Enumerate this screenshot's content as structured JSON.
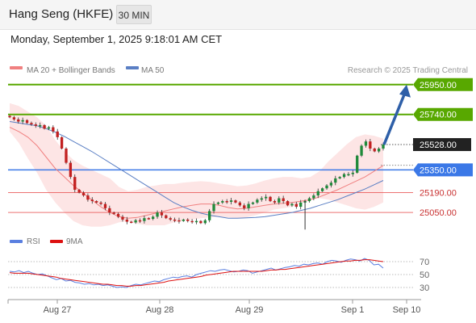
{
  "header": {
    "title": "Hang Seng (HKFE)",
    "interval": "30 MIN"
  },
  "datetime": "Monday, September 1, 2025 9:18:01 AM CET",
  "credit": "Research © 2025 Trading Central",
  "colors": {
    "resistance": "#58a800",
    "current": "#222222",
    "pivot": "#3b78e7",
    "support": "#e85050",
    "ma20": "#f08080",
    "ma50": "#5a7fc4",
    "bands": "#fde0e0",
    "candle_up": "#1f8a3a",
    "candle_down": "#c22020",
    "arrow": "#2e5fa8",
    "rsi": "#5a7fe0",
    "ma9": "#dd1111"
  },
  "chart_data": [
    {
      "type": "candlestick",
      "legend": [
        "MA 20 + Bollinger Bands",
        "MA 50"
      ],
      "x_ticks": [
        "Aug 27",
        "Aug 28",
        "Aug 29",
        "Sep 1",
        "Sep 10"
      ],
      "ylim": [
        24920,
        26000
      ],
      "levels": [
        {
          "label": "25950.00",
          "value": 25950,
          "kind": "resistance"
        },
        {
          "label": "25740.00",
          "value": 25740,
          "kind": "resistance"
        },
        {
          "label": "25528.00",
          "value": 25528,
          "kind": "current"
        },
        {
          "label": "25350.00",
          "value": 25350,
          "kind": "pivot"
        },
        {
          "label": "25190.00",
          "value": 25190,
          "kind": "support"
        },
        {
          "label": "25050.00",
          "value": 25050,
          "kind": "support"
        }
      ],
      "target_arrow": {
        "from": 25528,
        "to": 25950
      },
      "close": [
        25720,
        25705,
        25690,
        25700,
        25680,
        25670,
        25660,
        25665,
        25640,
        25650,
        25620,
        25580,
        25500,
        25400,
        25300,
        25210,
        25190,
        25170,
        25140,
        25130,
        25120,
        25110,
        25080,
        25050,
        25040,
        25020,
        25000,
        24985,
        24980,
        24995,
        24990,
        25010,
        25005,
        25020,
        25050,
        25030,
        25010,
        25000,
        24995,
        24990,
        25000,
        24990,
        24985,
        24990,
        24975,
        24995,
        25060,
        25110,
        25120,
        25130,
        25125,
        25135,
        25120,
        25100,
        25080,
        25110,
        25120,
        25140,
        25150,
        25160,
        25130,
        25120,
        25150,
        25130,
        25100,
        25110,
        25090,
        25120,
        25130,
        25150,
        25170,
        25200,
        25220,
        25240,
        25260,
        25290,
        25300,
        25320,
        25320,
        25330,
        25450,
        25520,
        25550,
        25500,
        25480,
        25500,
        25528
      ],
      "ma20": [
        25650,
        25620,
        25580,
        25520,
        25440,
        25360,
        25300,
        25240,
        25190,
        25140,
        25090,
        25050,
        25020,
        25010,
        25015,
        25030,
        25045,
        25060,
        25075,
        25090,
        25100,
        25110,
        25110,
        25100,
        25085,
        25075,
        25080,
        25090,
        25100,
        25110,
        25115,
        25120,
        25130,
        25140,
        25160,
        25185,
        25210,
        25240,
        25270,
        25300,
        25340,
        25380
      ],
      "ma50": [
        25690,
        25680,
        25670,
        25660,
        25640,
        25615,
        25585,
        25550,
        25515,
        25480,
        25440,
        25400,
        25360,
        25320,
        25280,
        25240,
        25200,
        25160,
        25120,
        25090,
        25065,
        25045,
        25030,
        25020,
        25010,
        25010,
        25012,
        25015,
        25020,
        25030,
        25040,
        25050,
        25065,
        25080,
        25100,
        25120,
        25140,
        25165,
        25190,
        25215,
        25245,
        25275
      ],
      "bb_upper": [
        25820,
        25800,
        25760,
        25720,
        25660,
        25560,
        25480,
        25420,
        25380,
        25350,
        25320,
        25290,
        25230,
        25200,
        25210,
        25230,
        25240,
        25250,
        25250,
        25260,
        25265,
        25270,
        25265,
        25255,
        25245,
        25235,
        25240,
        25255,
        25275,
        25290,
        25300,
        25300,
        25290,
        25300,
        25340,
        25410,
        25470,
        25530,
        25580,
        25600,
        25590,
        25570
      ],
      "bb_lower": [
        25620,
        25540,
        25430,
        25330,
        25210,
        25120,
        25050,
        24990,
        24960,
        24950,
        24950,
        24960,
        24980,
        24990,
        24970,
        24960,
        24960,
        24960,
        24980,
        24990,
        25000,
        25010,
        25015,
        25020,
        25015,
        25010,
        25015,
        25030,
        25050,
        25070,
        25080,
        25090,
        25110,
        25140,
        25150,
        25140,
        25120,
        25100,
        25080,
        25070,
        25090,
        25120
      ]
    },
    {
      "type": "line",
      "legend": [
        "RSI",
        "9MA"
      ],
      "y_ticks": [
        "70",
        "50",
        "30"
      ],
      "ylim": [
        15,
        85
      ],
      "rsi": [
        55,
        54,
        56,
        53,
        55,
        52,
        50,
        51,
        48,
        45,
        42,
        44,
        40,
        41,
        38,
        37,
        35,
        36,
        34,
        35,
        33,
        34,
        32,
        30,
        31,
        30,
        33,
        35,
        34,
        36,
        38,
        40,
        39,
        42,
        44,
        46,
        45,
        47,
        48,
        46,
        50,
        52,
        54,
        56,
        55,
        57,
        58,
        56,
        54,
        55,
        57,
        56,
        52,
        54,
        56,
        58,
        60,
        57,
        59,
        61,
        62,
        64,
        63,
        66,
        65,
        67,
        68,
        66,
        70,
        72,
        71,
        69,
        72,
        74,
        73,
        71,
        75,
        72,
        65,
        66,
        60
      ],
      "ma9": [
        53,
        52,
        52,
        52,
        52,
        51,
        50,
        49,
        48,
        47,
        46,
        44,
        43,
        42,
        41,
        40,
        39,
        38,
        37,
        36,
        35,
        35,
        34,
        33,
        33,
        32,
        32,
        33,
        33,
        34,
        35,
        36,
        37,
        38,
        40,
        41,
        42,
        43,
        44,
        45,
        46,
        47,
        49,
        50,
        51,
        52,
        53,
        54,
        55,
        55,
        55,
        55,
        55,
        55,
        55,
        56,
        57,
        57,
        58,
        58,
        59,
        60,
        61,
        62,
        63,
        64,
        65,
        66,
        67,
        68,
        69,
        70,
        71,
        71,
        72,
        72,
        73,
        73,
        72,
        71,
        70
      ]
    }
  ]
}
